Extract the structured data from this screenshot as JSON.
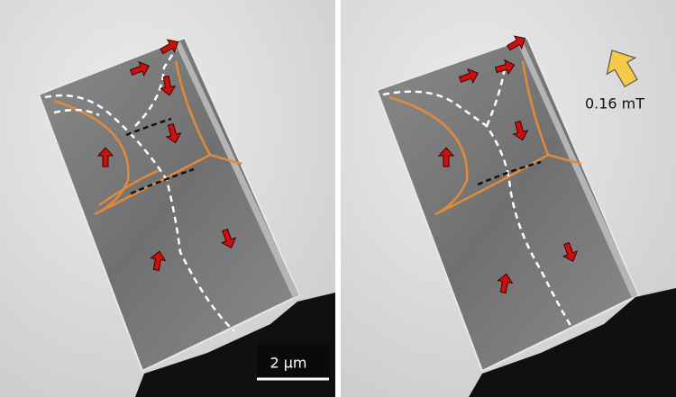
{
  "scale_bar": {
    "label": "2 µm"
  },
  "field": {
    "label": "0.16 mT"
  }
}
